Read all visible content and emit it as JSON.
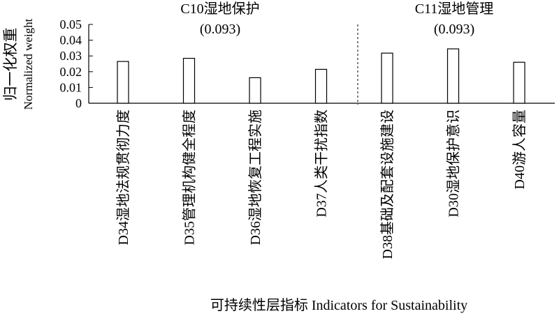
{
  "chart_data": {
    "type": "bar",
    "ylabel_cn": "归一化权重",
    "ylabel_en": "Normalized weight",
    "xlabel": "可持续性层指标 Indicators for Sustainability",
    "ylim": [
      0,
      0.05
    ],
    "yticks": [
      "0",
      "0.01",
      "0.02",
      "0.03",
      "0.04",
      "0.05"
    ],
    "groups": [
      {
        "name": "C10湿地保护",
        "weight": "(0.093)"
      },
      {
        "name": "C11湿地管理",
        "weight": "(0.093)"
      }
    ],
    "categories": [
      "D34湿地法规贯彻力度",
      "D35管理机构健全程度",
      "D36湿地恢复工程实施",
      "D37人类干扰指数",
      "D38基础及配套设施建设",
      "D30湿地保护意识",
      "D40游人容量"
    ],
    "values": [
      0.0265,
      0.0285,
      0.0162,
      0.0215,
      0.0318,
      0.0345,
      0.026
    ],
    "group_index": [
      0,
      0,
      0,
      0,
      1,
      1,
      1
    ],
    "bar_fill": "#ffffff",
    "bar_stroke": "#000000"
  }
}
